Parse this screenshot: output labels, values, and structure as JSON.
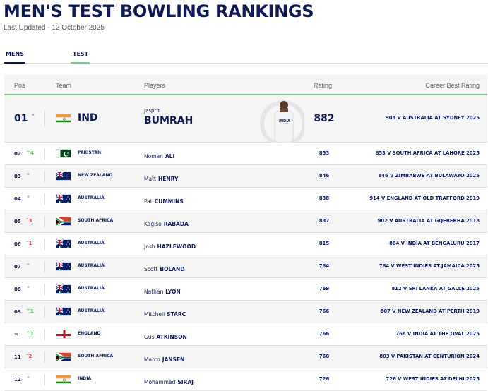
{
  "header": {
    "title": "MEN'S TEST BOWLING RANKINGS",
    "updated": "Last Updated - 12 October 2025"
  },
  "tabs": [
    {
      "label": "MENS"
    },
    {
      "label": "TEST"
    }
  ],
  "columns": {
    "pos": "Pos",
    "team": "Team",
    "players": "Players",
    "rating": "Rating",
    "best": "Career Best Rating"
  },
  "colors": {
    "navy": "#0c1a5c",
    "green_accent": "#74c97e",
    "up": "#3ec25a",
    "down": "#e0323c"
  },
  "top": {
    "pos": "01",
    "change": "•",
    "team": "IND",
    "flag": "india",
    "first": "Jasprit",
    "last": "BUMRAH",
    "rating": "882",
    "best": "908 V AUSTRALIA AT SYDNEY 2025"
  },
  "rows": [
    {
      "pos": "02",
      "dir": "up",
      "change": "^4",
      "team": "PAKISTAN",
      "flag": "pakistan",
      "first": "Noman",
      "last": "ALI",
      "rating": "853",
      "best": "853 V SOUTH AFRICA AT LAHORE 2025"
    },
    {
      "pos": "03",
      "dir": "none",
      "change": "•",
      "team": "NEW ZEALAND",
      "flag": "nz",
      "first": "Matt",
      "last": "HENRY",
      "rating": "846",
      "best": "846 V ZIMBABWE AT BULAWAYO 2025"
    },
    {
      "pos": "04",
      "dir": "none",
      "change": "•",
      "team": "AUSTRALIA",
      "flag": "australia",
      "first": "Pat",
      "last": "CUMMINS",
      "rating": "838",
      "best": "914 V ENGLAND AT OLD TRAFFORD 2019"
    },
    {
      "pos": "05",
      "dir": "down",
      "change": "˅3",
      "team": "SOUTH AFRICA",
      "flag": "southafrica",
      "first": "Kagiso",
      "last": "RABADA",
      "rating": "837",
      "best": "902 V AUSTRALIA AT GQEBERHA 2018"
    },
    {
      "pos": "06",
      "dir": "down",
      "change": "˅1",
      "team": "AUSTRALIA",
      "flag": "australia",
      "first": "Josh",
      "last": "HAZLEWOOD",
      "rating": "815",
      "best": "864 V INDIA AT BENGALURU 2017"
    },
    {
      "pos": "07",
      "dir": "none",
      "change": "•",
      "team": "AUSTRALIA",
      "flag": "australia",
      "first": "Scott",
      "last": "BOLAND",
      "rating": "784",
      "best": "784 V WEST INDIES AT JAMAICA 2025"
    },
    {
      "pos": "08",
      "dir": "none",
      "change": "•",
      "team": "AUSTRALIA",
      "flag": "australia",
      "first": "Nathan",
      "last": "LYON",
      "rating": "769",
      "best": "812 V SRI LANKA AT GALLE 2025"
    },
    {
      "pos": "09",
      "dir": "up",
      "change": "^1",
      "team": "AUSTRALIA",
      "flag": "australia",
      "first": "Mitchell",
      "last": "STARC",
      "rating": "766",
      "best": "807 V NEW ZEALAND AT PERTH 2019"
    },
    {
      "pos": "=",
      "dir": "up",
      "change": "^1",
      "team": "ENGLAND",
      "flag": "england",
      "first": "Gus",
      "last": "ATKINSON",
      "rating": "766",
      "best": "766 V INDIA AT THE OVAL 2025"
    },
    {
      "pos": "11",
      "dir": "down",
      "change": "˅2",
      "team": "SOUTH AFRICA",
      "flag": "southafrica",
      "first": "Marco",
      "last": "JANSEN",
      "rating": "760",
      "best": "803 V PAKISTAN AT CENTURION 2024"
    },
    {
      "pos": "12",
      "dir": "none",
      "change": "•",
      "team": "INDIA",
      "flag": "india",
      "first": "Mohammed",
      "last": "SIRAJ",
      "rating": "726",
      "best": "726 V WEST INDIES AT DELHI 2025"
    }
  ]
}
